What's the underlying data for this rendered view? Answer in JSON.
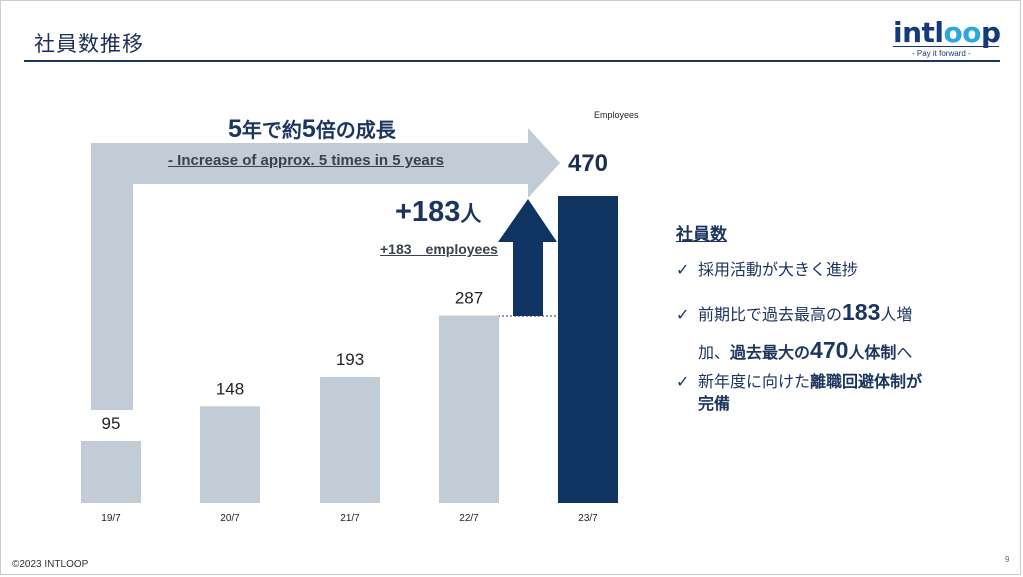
{
  "header": {
    "title": "社員数推移",
    "logo_text_a": "intl",
    "logo_text_b": "oo",
    "logo_text_c": "p",
    "logo_tagline": "- Pay it forward -"
  },
  "colors": {
    "bar_light": "#c2ccd6",
    "bar_dark": "#0f3462",
    "arrow": "#c2ccd6"
  },
  "chart_data": {
    "type": "bar",
    "categories": [
      "19/7",
      "20/7",
      "21/7",
      "22/7",
      "23/7"
    ],
    "values": [
      95,
      148,
      193,
      287,
      470
    ],
    "value_labels": [
      "95",
      "148",
      "193",
      "287",
      "470"
    ],
    "unit_label": "Employees",
    "highlight_index": 4,
    "increment": 183,
    "ylim": [
      0,
      500
    ]
  },
  "annotations": {
    "growth_title_a": "5",
    "growth_title_b": "年で約",
    "growth_title_c": "5",
    "growth_title_d": "倍の成長",
    "growth_subtitle": "- Increase of approx. 5 times in 5 years",
    "increment_title_a": "+183",
    "increment_title_b": "人",
    "increment_subtitle": "+183　employees"
  },
  "panel": {
    "heading": "社員数",
    "check": "✓",
    "b1": "採用活動が大きく進捗",
    "b2_a": "前期比で過去最高の",
    "b2_b": "183",
    "b2_c": "人増",
    "b2_d": "加、",
    "b2_e": "過去最大の",
    "b2_f": "470",
    "b2_g": "人体制",
    "b2_h": "へ",
    "b3_a": "新年度に向けた",
    "b3_b": "離職回避体制が",
    "b3_c": "完備"
  },
  "footer": {
    "copyright": "©2023 INTLOOP",
    "page": "9"
  }
}
